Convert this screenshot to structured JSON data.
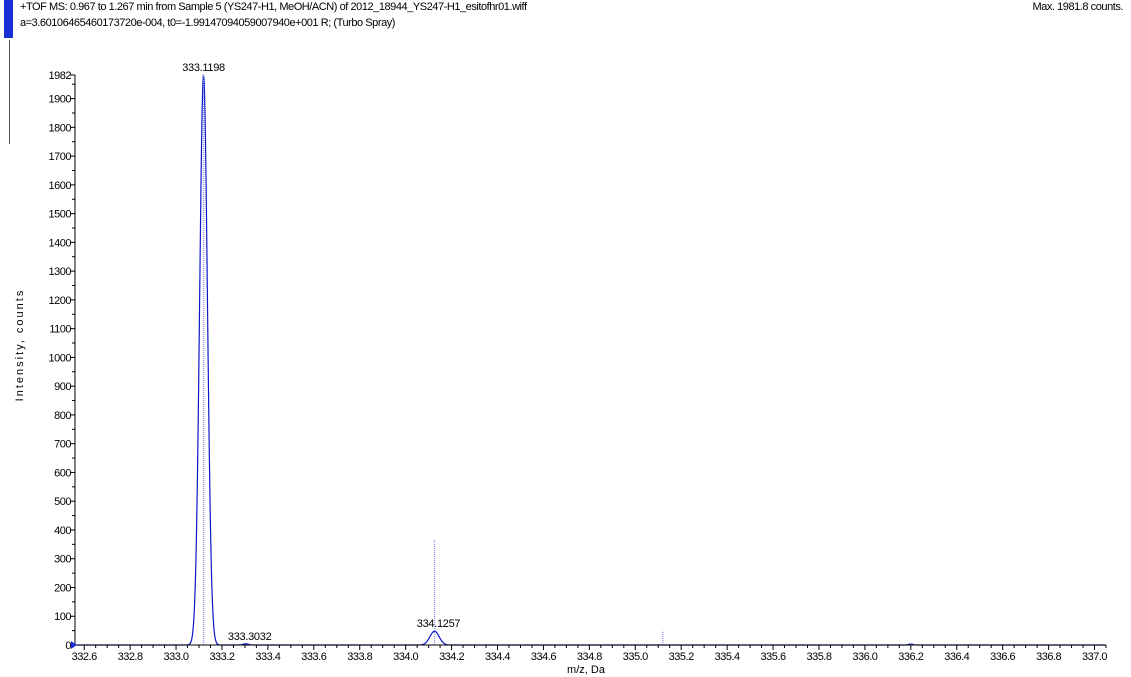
{
  "header": {
    "line1": "+TOF MS: 0.967 to 1.267 min from Sample 5 (YS247-H1, MeOH/ACN) of 2012_18944_YS247-H1_esitofhr01.wiff",
    "line2": "a=3.60106465460173720e-004, t0=-1.99147094059007940e+001 R; (Turbo Spray)",
    "max_counts": "Max. 1981.8 counts."
  },
  "colors": {
    "profile": "#0b16c8",
    "centroid": "#8a8ff0",
    "axis": "#000000",
    "marker": "#1a2fd6"
  },
  "chart_data": {
    "type": "line",
    "xlabel": "m/z, Da",
    "ylabel": "Intensity, counts",
    "xlim": [
      332.56,
      337.05
    ],
    "ylim": [
      0,
      1982
    ],
    "x_ticks": [
      332.6,
      332.8,
      333.0,
      333.2,
      333.4,
      333.6,
      333.8,
      334.0,
      334.2,
      334.4,
      334.6,
      334.8,
      335.0,
      335.2,
      335.4,
      335.6,
      335.8,
      336.0,
      336.2,
      336.4,
      336.6,
      336.8,
      337.0
    ],
    "x_tick_labels": [
      "332.6",
      "332.8",
      "333.0",
      "333.2",
      "333.4",
      "333.6",
      "333.8",
      "334.0",
      "334.2",
      "334.4",
      "334.6",
      "334.8",
      "335.0",
      "335.2",
      "335.4",
      "335.6",
      "335.8",
      "336.0",
      "336.2",
      "336.4",
      "336.6",
      "336.8",
      "337.0"
    ],
    "y_ticks": [
      0,
      100,
      200,
      300,
      400,
      500,
      600,
      700,
      800,
      900,
      1000,
      1100,
      1200,
      1300,
      1400,
      1500,
      1600,
      1700,
      1800,
      1900,
      1982
    ],
    "y_tick_labels": [
      "0",
      "100",
      "200",
      "300",
      "400",
      "500",
      "600",
      "700",
      "800",
      "900",
      "1000",
      "1100",
      "1200",
      "1300",
      "1400",
      "1500",
      "1600",
      "1700",
      "1800",
      "1900",
      "1982"
    ],
    "grid": false,
    "profile_peaks": [
      {
        "center": 333.1198,
        "height": 1982,
        "sigma": 0.017
      },
      {
        "center": 333.3032,
        "height": 4,
        "sigma": 0.012
      },
      {
        "center": 334.1257,
        "height": 48,
        "sigma": 0.02
      },
      {
        "center": 336.2,
        "height": 3,
        "sigma": 0.01
      }
    ],
    "centroid_lines": [
      {
        "x": 333.1198,
        "y": 1982
      },
      {
        "x": 334.1257,
        "y": 365
      },
      {
        "x": 335.12,
        "y": 50
      },
      {
        "x": 336.2,
        "y": 6
      }
    ],
    "peak_labels": [
      {
        "x": 333.1198,
        "y": 1982,
        "label": "333.1198"
      },
      {
        "x": 333.3032,
        "y": 4,
        "label": "333.3032"
      },
      {
        "x": 334.1257,
        "y": 48,
        "label": "334.1257"
      }
    ]
  }
}
